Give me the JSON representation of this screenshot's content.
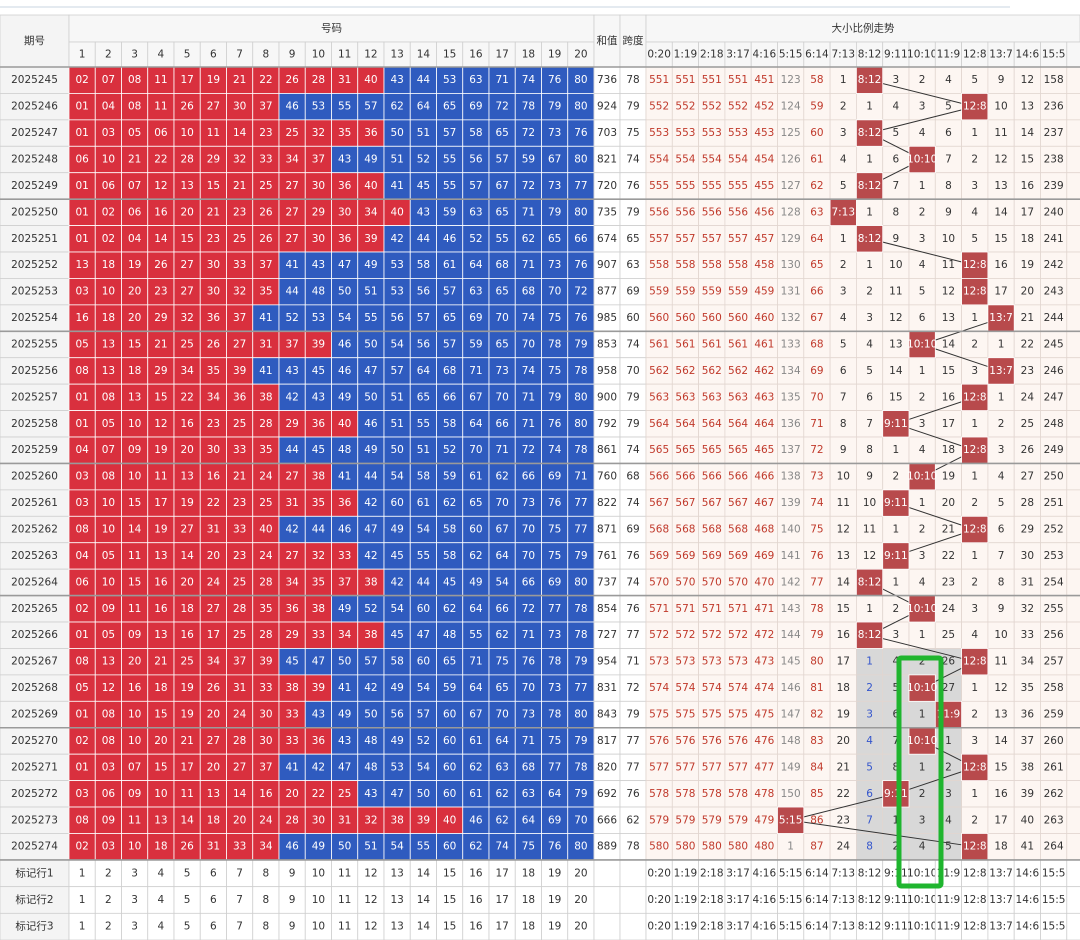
{
  "header": {
    "issue": "期号",
    "numbers": "号码",
    "number_columns": [
      1,
      2,
      3,
      4,
      5,
      6,
      7,
      8,
      9,
      10,
      11,
      12,
      13,
      14,
      15,
      16,
      17,
      18,
      19,
      20
    ],
    "sum": "和值",
    "span": "跨度",
    "trend": "大小比例走势",
    "ratio_columns": [
      "0:20",
      "1:19",
      "2:18",
      "3:17",
      "4:16",
      "5:15",
      "6:14",
      "7:13",
      "8:12",
      "9:11",
      "10:10",
      "11:9",
      "12:8",
      "13:7",
      "14:6",
      "15:5"
    ]
  },
  "rows": [
    {
      "issue": "2025245",
      "numbers": [
        "02",
        "07",
        "08",
        "11",
        "17",
        "19",
        "21",
        "22",
        "26",
        "28",
        "31",
        "40",
        "43",
        "44",
        "53",
        "63",
        "71",
        "74",
        "76",
        "80"
      ],
      "sum": 736,
      "span": 78,
      "trend": [
        551,
        551,
        551,
        551,
        451,
        123,
        58,
        1,
        "8:12",
        3,
        2,
        4,
        5,
        9,
        12,
        158
      ]
    },
    {
      "issue": "2025246",
      "numbers": [
        "01",
        "04",
        "08",
        "11",
        "26",
        "27",
        "30",
        "37",
        "46",
        "53",
        "55",
        "57",
        "62",
        "64",
        "65",
        "69",
        "72",
        "78",
        "79",
        "80"
      ],
      "sum": 924,
      "span": 79,
      "trend": [
        552,
        552,
        552,
        552,
        452,
        124,
        59,
        2,
        1,
        4,
        3,
        5,
        "12:8",
        10,
        13,
        236
      ]
    },
    {
      "issue": "2025247",
      "numbers": [
        "01",
        "03",
        "05",
        "06",
        "10",
        "11",
        "14",
        "23",
        "25",
        "32",
        "35",
        "36",
        "50",
        "51",
        "57",
        "58",
        "65",
        "72",
        "73",
        "76"
      ],
      "sum": 703,
      "span": 75,
      "trend": [
        553,
        553,
        553,
        553,
        453,
        125,
        60,
        3,
        "8:12",
        5,
        4,
        6,
        1,
        11,
        14,
        237
      ]
    },
    {
      "issue": "2025248",
      "numbers": [
        "06",
        "10",
        "21",
        "22",
        "28",
        "29",
        "32",
        "33",
        "34",
        "37",
        "43",
        "49",
        "51",
        "52",
        "55",
        "56",
        "57",
        "59",
        "67",
        "80"
      ],
      "sum": 821,
      "span": 74,
      "trend": [
        554,
        554,
        554,
        554,
        454,
        126,
        61,
        4,
        1,
        6,
        "10:10",
        7,
        2,
        12,
        15,
        238
      ]
    },
    {
      "issue": "2025249",
      "numbers": [
        "01",
        "06",
        "07",
        "12",
        "13",
        "15",
        "21",
        "25",
        "27",
        "30",
        "36",
        "40",
        "41",
        "45",
        "55",
        "57",
        "67",
        "72",
        "73",
        "77"
      ],
      "sum": 720,
      "span": 76,
      "trend": [
        555,
        555,
        555,
        555,
        455,
        127,
        62,
        5,
        "8:12",
        7,
        1,
        8,
        3,
        13,
        16,
        239
      ]
    },
    {
      "issue": "2025250",
      "numbers": [
        "01",
        "02",
        "06",
        "16",
        "20",
        "21",
        "23",
        "26",
        "27",
        "29",
        "30",
        "34",
        "40",
        "43",
        "59",
        "63",
        "65",
        "71",
        "79",
        "80"
      ],
      "sum": 735,
      "span": 79,
      "trend": [
        556,
        556,
        556,
        556,
        456,
        128,
        63,
        "7:13",
        1,
        8,
        2,
        9,
        4,
        14,
        17,
        240
      ]
    },
    {
      "issue": "2025251",
      "numbers": [
        "01",
        "02",
        "04",
        "14",
        "15",
        "23",
        "25",
        "26",
        "27",
        "30",
        "36",
        "39",
        "42",
        "44",
        "46",
        "52",
        "55",
        "62",
        "65",
        "66"
      ],
      "sum": 674,
      "span": 65,
      "trend": [
        557,
        557,
        557,
        557,
        457,
        129,
        64,
        1,
        "8:12",
        9,
        3,
        10,
        5,
        15,
        18,
        241
      ]
    },
    {
      "issue": "2025252",
      "numbers": [
        "13",
        "18",
        "19",
        "26",
        "27",
        "30",
        "33",
        "37",
        "41",
        "43",
        "47",
        "49",
        "53",
        "58",
        "61",
        "64",
        "68",
        "71",
        "73",
        "76"
      ],
      "sum": 907,
      "span": 63,
      "trend": [
        558,
        558,
        558,
        558,
        458,
        130,
        65,
        2,
        1,
        10,
        4,
        11,
        "12:8",
        16,
        19,
        242
      ]
    },
    {
      "issue": "2025253",
      "numbers": [
        "03",
        "10",
        "20",
        "23",
        "27",
        "30",
        "32",
        "35",
        "44",
        "48",
        "50",
        "51",
        "53",
        "56",
        "57",
        "63",
        "65",
        "68",
        "70",
        "72"
      ],
      "sum": 877,
      "span": 69,
      "trend": [
        559,
        559,
        559,
        559,
        459,
        131,
        66,
        3,
        2,
        11,
        5,
        12,
        "12:8",
        17,
        20,
        243
      ]
    },
    {
      "issue": "2025254",
      "numbers": [
        "16",
        "18",
        "20",
        "29",
        "32",
        "36",
        "37",
        "41",
        "52",
        "53",
        "54",
        "55",
        "56",
        "57",
        "65",
        "69",
        "70",
        "74",
        "75",
        "76"
      ],
      "sum": 985,
      "span": 60,
      "trend": [
        560,
        560,
        560,
        560,
        460,
        132,
        67,
        4,
        3,
        12,
        6,
        13,
        1,
        "13:7",
        21,
        244
      ]
    },
    {
      "issue": "2025255",
      "numbers": [
        "05",
        "13",
        "15",
        "21",
        "25",
        "26",
        "27",
        "31",
        "37",
        "39",
        "46",
        "50",
        "54",
        "56",
        "57",
        "59",
        "65",
        "70",
        "78",
        "79"
      ],
      "sum": 853,
      "span": 74,
      "trend": [
        561,
        561,
        561,
        561,
        461,
        133,
        68,
        5,
        4,
        13,
        "10:10",
        14,
        2,
        1,
        22,
        245
      ]
    },
    {
      "issue": "2025256",
      "numbers": [
        "08",
        "13",
        "18",
        "29",
        "34",
        "35",
        "39",
        "41",
        "43",
        "45",
        "46",
        "47",
        "57",
        "64",
        "68",
        "71",
        "73",
        "74",
        "75",
        "78"
      ],
      "sum": 958,
      "span": 70,
      "trend": [
        562,
        562,
        562,
        562,
        462,
        134,
        69,
        6,
        5,
        14,
        1,
        15,
        3,
        "13:7",
        23,
        246
      ]
    },
    {
      "issue": "2025257",
      "numbers": [
        "01",
        "08",
        "13",
        "15",
        "22",
        "34",
        "36",
        "38",
        "42",
        "43",
        "49",
        "50",
        "51",
        "65",
        "66",
        "67",
        "70",
        "71",
        "79",
        "80"
      ],
      "sum": 900,
      "span": 79,
      "trend": [
        563,
        563,
        563,
        563,
        463,
        135,
        70,
        7,
        6,
        15,
        2,
        16,
        "12:8",
        1,
        24,
        247
      ]
    },
    {
      "issue": "2025258",
      "numbers": [
        "01",
        "05",
        "10",
        "12",
        "16",
        "23",
        "25",
        "28",
        "29",
        "36",
        "40",
        "46",
        "51",
        "55",
        "58",
        "64",
        "66",
        "71",
        "76",
        "80"
      ],
      "sum": 792,
      "span": 79,
      "trend": [
        564,
        564,
        564,
        564,
        464,
        136,
        71,
        8,
        7,
        "9:11",
        3,
        17,
        1,
        2,
        25,
        248
      ]
    },
    {
      "issue": "2025259",
      "numbers": [
        "04",
        "07",
        "09",
        "19",
        "20",
        "30",
        "33",
        "35",
        "44",
        "45",
        "48",
        "49",
        "50",
        "51",
        "52",
        "70",
        "71",
        "72",
        "74",
        "78"
      ],
      "sum": 861,
      "span": 74,
      "trend": [
        565,
        565,
        565,
        565,
        465,
        137,
        72,
        9,
        8,
        1,
        4,
        18,
        "12:8",
        3,
        26,
        249
      ]
    },
    {
      "issue": "2025260",
      "numbers": [
        "03",
        "08",
        "10",
        "11",
        "13",
        "16",
        "21",
        "24",
        "27",
        "38",
        "41",
        "44",
        "54",
        "58",
        "59",
        "61",
        "62",
        "66",
        "69",
        "71"
      ],
      "sum": 760,
      "span": 68,
      "trend": [
        566,
        566,
        566,
        566,
        466,
        138,
        73,
        10,
        9,
        2,
        "10:10",
        19,
        1,
        4,
        27,
        250
      ]
    },
    {
      "issue": "2025261",
      "numbers": [
        "03",
        "10",
        "15",
        "17",
        "19",
        "22",
        "23",
        "25",
        "31",
        "35",
        "36",
        "42",
        "60",
        "61",
        "62",
        "65",
        "70",
        "73",
        "76",
        "77"
      ],
      "sum": 822,
      "span": 74,
      "trend": [
        567,
        567,
        567,
        567,
        467,
        139,
        74,
        11,
        10,
        "9:11",
        1,
        20,
        2,
        5,
        28,
        251
      ]
    },
    {
      "issue": "2025262",
      "numbers": [
        "08",
        "10",
        "14",
        "19",
        "27",
        "31",
        "33",
        "40",
        "42",
        "44",
        "46",
        "47",
        "49",
        "54",
        "58",
        "60",
        "67",
        "70",
        "75",
        "77"
      ],
      "sum": 871,
      "span": 69,
      "trend": [
        568,
        568,
        568,
        568,
        468,
        140,
        75,
        12,
        11,
        1,
        2,
        21,
        "12:8",
        6,
        29,
        252
      ]
    },
    {
      "issue": "2025263",
      "numbers": [
        "04",
        "05",
        "11",
        "13",
        "14",
        "20",
        "23",
        "24",
        "27",
        "32",
        "33",
        "42",
        "45",
        "55",
        "58",
        "62",
        "64",
        "70",
        "75",
        "79"
      ],
      "sum": 761,
      "span": 76,
      "trend": [
        569,
        569,
        569,
        569,
        469,
        141,
        76,
        13,
        12,
        "9:11",
        3,
        22,
        1,
        7,
        30,
        253
      ]
    },
    {
      "issue": "2025264",
      "numbers": [
        "06",
        "10",
        "15",
        "16",
        "20",
        "24",
        "25",
        "28",
        "34",
        "35",
        "37",
        "38",
        "42",
        "44",
        "45",
        "49",
        "54",
        "66",
        "69",
        "80"
      ],
      "sum": 737,
      "span": 74,
      "trend": [
        570,
        570,
        570,
        570,
        470,
        142,
        77,
        14,
        "8:12",
        1,
        4,
        23,
        2,
        8,
        31,
        254
      ]
    },
    {
      "issue": "2025265",
      "numbers": [
        "02",
        "09",
        "11",
        "16",
        "18",
        "27",
        "28",
        "35",
        "36",
        "38",
        "49",
        "52",
        "54",
        "60",
        "62",
        "64",
        "66",
        "72",
        "77",
        "78"
      ],
      "sum": 854,
      "span": 76,
      "trend": [
        571,
        571,
        571,
        571,
        471,
        143,
        78,
        15,
        1,
        2,
        "10:10",
        24,
        3,
        9,
        32,
        255
      ]
    },
    {
      "issue": "2025266",
      "numbers": [
        "01",
        "05",
        "09",
        "13",
        "16",
        "17",
        "25",
        "28",
        "29",
        "33",
        "34",
        "38",
        "45",
        "47",
        "48",
        "55",
        "62",
        "71",
        "73",
        "78"
      ],
      "sum": 727,
      "span": 77,
      "trend": [
        572,
        572,
        572,
        572,
        472,
        144,
        79,
        16,
        "8:12",
        3,
        1,
        25,
        4,
        10,
        33,
        256
      ]
    },
    {
      "issue": "2025267",
      "numbers": [
        "08",
        "13",
        "20",
        "21",
        "25",
        "34",
        "37",
        "39",
        "45",
        "47",
        "50",
        "57",
        "58",
        "60",
        "65",
        "71",
        "75",
        "76",
        "78",
        "79"
      ],
      "sum": 954,
      "span": 71,
      "trend": [
        573,
        573,
        573,
        573,
        473,
        145,
        80,
        17,
        1,
        4,
        2,
        26,
        "12:8",
        11,
        34,
        257
      ]
    },
    {
      "issue": "2025268",
      "numbers": [
        "05",
        "12",
        "16",
        "18",
        "19",
        "26",
        "31",
        "33",
        "38",
        "39",
        "41",
        "42",
        "49",
        "54",
        "59",
        "64",
        "65",
        "70",
        "73",
        "77"
      ],
      "sum": 831,
      "span": 72,
      "trend": [
        574,
        574,
        574,
        574,
        474,
        146,
        81,
        18,
        2,
        5,
        "10:10",
        27,
        1,
        12,
        35,
        258
      ]
    },
    {
      "issue": "2025269",
      "numbers": [
        "01",
        "08",
        "10",
        "15",
        "19",
        "20",
        "24",
        "30",
        "33",
        "43",
        "49",
        "50",
        "56",
        "57",
        "60",
        "67",
        "70",
        "73",
        "78",
        "80"
      ],
      "sum": 843,
      "span": 79,
      "trend": [
        575,
        575,
        575,
        575,
        475,
        147,
        82,
        19,
        3,
        6,
        1,
        "11:9",
        2,
        13,
        36,
        259
      ]
    },
    {
      "issue": "2025270",
      "numbers": [
        "02",
        "08",
        "10",
        "20",
        "21",
        "27",
        "28",
        "30",
        "33",
        "36",
        "43",
        "48",
        "49",
        "52",
        "60",
        "61",
        "64",
        "71",
        "75",
        "79"
      ],
      "sum": 817,
      "span": 77,
      "trend": [
        576,
        576,
        576,
        576,
        476,
        148,
        83,
        20,
        4,
        7,
        "10:10",
        1,
        3,
        14,
        37,
        260
      ]
    },
    {
      "issue": "2025271",
      "numbers": [
        "01",
        "03",
        "07",
        "15",
        "17",
        "20",
        "27",
        "37",
        "41",
        "42",
        "47",
        "48",
        "53",
        "54",
        "60",
        "62",
        "63",
        "68",
        "77",
        "78"
      ],
      "sum": 820,
      "span": 77,
      "trend": [
        577,
        577,
        577,
        577,
        477,
        149,
        84,
        21,
        5,
        8,
        1,
        2,
        "12:8",
        15,
        38,
        261
      ]
    },
    {
      "issue": "2025272",
      "numbers": [
        "03",
        "06",
        "09",
        "10",
        "11",
        "13",
        "14",
        "16",
        "20",
        "22",
        "25",
        "43",
        "47",
        "50",
        "60",
        "61",
        "62",
        "63",
        "64",
        "79"
      ],
      "sum": 692,
      "span": 76,
      "trend": [
        578,
        578,
        578,
        578,
        478,
        150,
        85,
        22,
        6,
        "9:11",
        2,
        3,
        1,
        16,
        39,
        262
      ]
    },
    {
      "issue": "2025273",
      "numbers": [
        "08",
        "09",
        "11",
        "13",
        "14",
        "18",
        "20",
        "24",
        "28",
        "30",
        "31",
        "32",
        "38",
        "39",
        "40",
        "46",
        "62",
        "64",
        "69",
        "70"
      ],
      "sum": 666,
      "span": 62,
      "trend": [
        579,
        579,
        579,
        579,
        479,
        "5:15",
        86,
        23,
        7,
        1,
        3,
        4,
        2,
        17,
        40,
        263
      ]
    },
    {
      "issue": "2025274",
      "numbers": [
        "02",
        "03",
        "10",
        "18",
        "26",
        "31",
        "33",
        "34",
        "46",
        "49",
        "50",
        "51",
        "54",
        "55",
        "60",
        "62",
        "74",
        "75",
        "76",
        "80"
      ],
      "sum": 889,
      "span": 78,
      "trend": [
        580,
        580,
        580,
        580,
        480,
        1,
        87,
        24,
        8,
        2,
        4,
        5,
        "12:8",
        18,
        41,
        264
      ]
    }
  ],
  "footer": [
    "标记行1",
    "标记行2",
    "标记行3"
  ]
}
